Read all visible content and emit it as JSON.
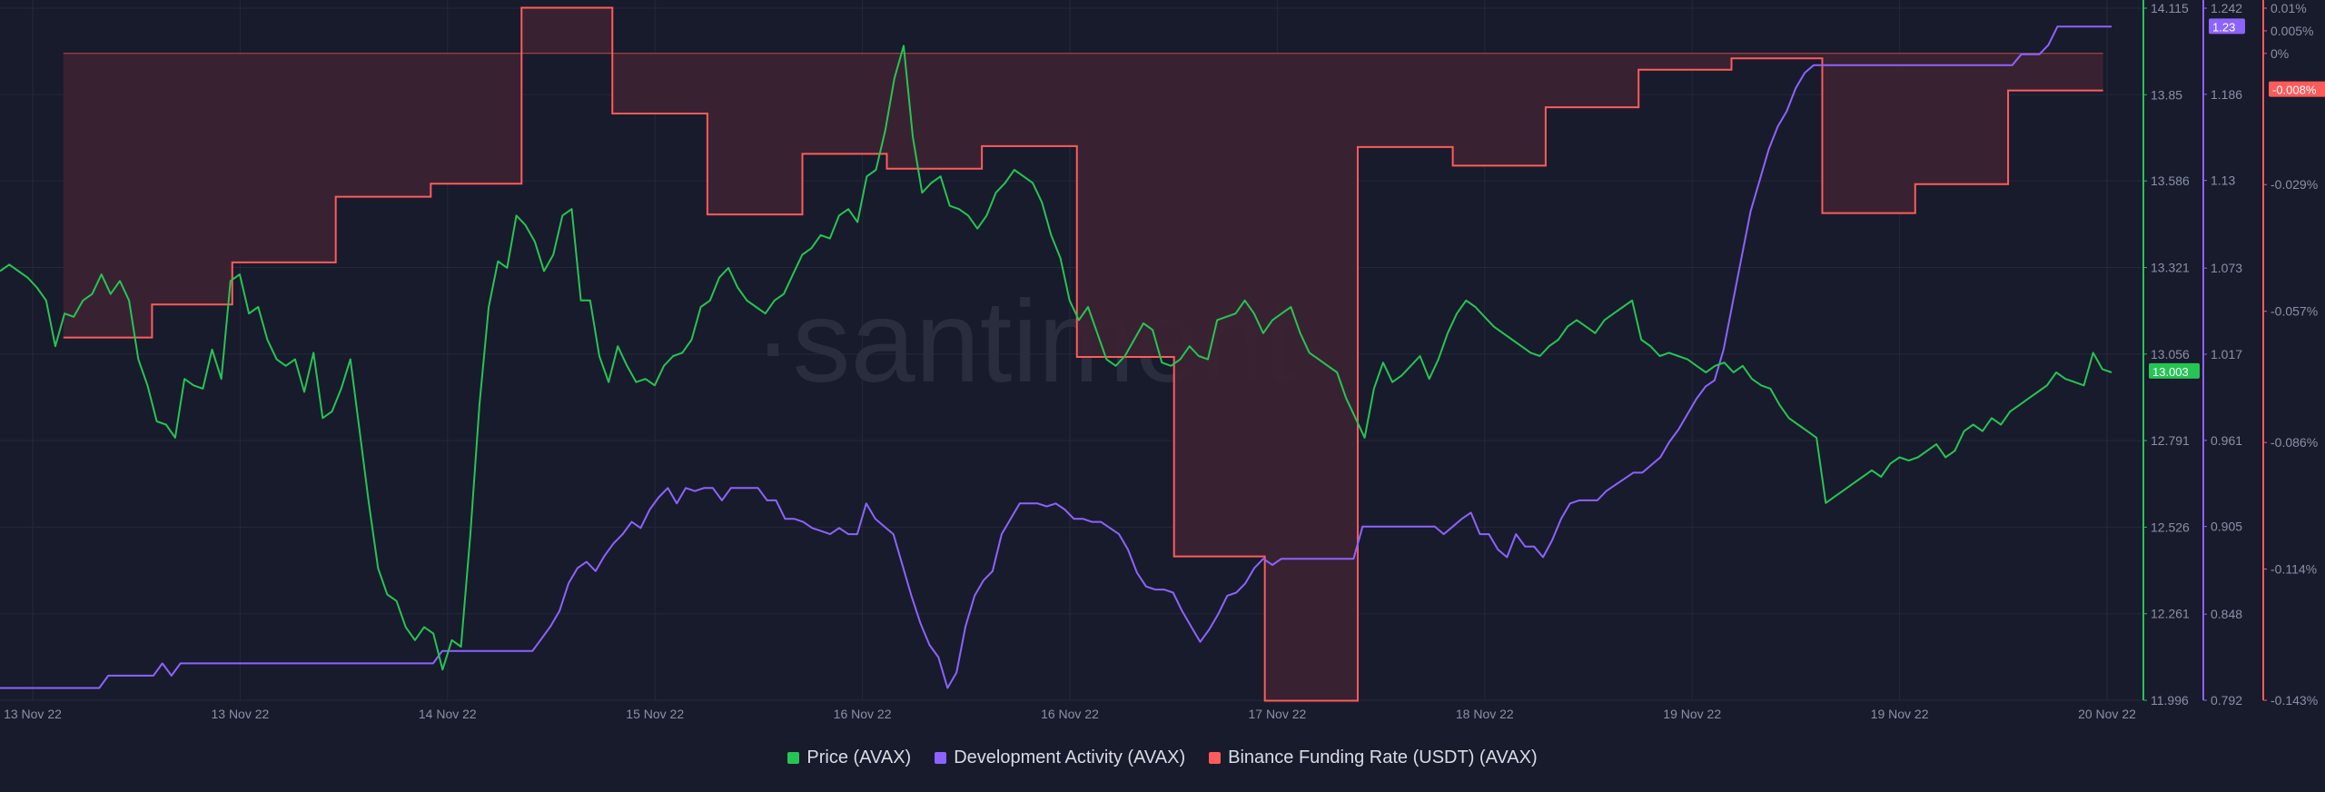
{
  "watermark": "·santiment·",
  "colors": {
    "background": "#181b2b",
    "price": "#26c454",
    "dev_activity": "#8c63ff",
    "funding_rate": "#ff5b5b",
    "funding_fill": "#3a2331",
    "grid": "#242838",
    "axis_text": "#8b90a5"
  },
  "legend": {
    "price": "Price (AVAX)",
    "dev_activity": "Development Activity (AVAX)",
    "funding_rate": "Binance Funding Rate (USDT) (AVAX)"
  },
  "chart_data": {
    "type": "line",
    "x_axis": {
      "start": "13 Nov 22",
      "end": "20 Nov 22",
      "tick_labels": [
        "13 Nov 22",
        "13 Nov 22",
        "14 Nov 22",
        "15 Nov 22",
        "16 Nov 22",
        "16 Nov 22",
        "17 Nov 22",
        "18 Nov 22",
        "19 Nov 22",
        "19 Nov 22",
        "20 Nov 22"
      ]
    },
    "axes": {
      "price": {
        "ticks": [
          "14.115",
          "13.85",
          "13.586",
          "13.321",
          "13.056",
          "12.791",
          "12.526",
          "12.261",
          "11.996"
        ],
        "range": [
          11.996,
          14.115
        ],
        "current_value": "13.003"
      },
      "dev_activity": {
        "ticks": [
          "1.242",
          "1.186",
          "1.13",
          "1.073",
          "1.017",
          "0.961",
          "0.905",
          "0.848",
          "0.792"
        ],
        "range": [
          0.792,
          1.242
        ],
        "current_value": "1.23"
      },
      "funding_rate": {
        "ticks": [
          "0.01%",
          "0.005%",
          "0%",
          "-0.029%",
          "-0.057%",
          "-0.086%",
          "-0.114%",
          "-0.143%"
        ],
        "range": [
          -0.143,
          0.01
        ],
        "current_value": "-0.008%"
      }
    },
    "series": [
      {
        "name": "Price (AVAX)",
        "axis": "price",
        "values": [
          13.31,
          13.33,
          13.31,
          13.29,
          13.26,
          13.22,
          13.08,
          13.18,
          13.17,
          13.22,
          13.24,
          13.3,
          13.24,
          13.28,
          13.22,
          13.04,
          12.96,
          12.85,
          12.84,
          12.8,
          12.98,
          12.96,
          12.95,
          13.07,
          12.98,
          13.28,
          13.3,
          13.18,
          13.2,
          13.1,
          13.04,
          13.02,
          13.04,
          12.94,
          13.06,
          12.86,
          12.88,
          12.95,
          13.04,
          12.82,
          12.6,
          12.4,
          12.32,
          12.3,
          12.22,
          12.18,
          12.22,
          12.2,
          12.09,
          12.18,
          12.16,
          12.5,
          12.9,
          13.2,
          13.34,
          13.32,
          13.48,
          13.45,
          13.4,
          13.31,
          13.36,
          13.48,
          13.5,
          13.22,
          13.22,
          13.05,
          12.97,
          13.08,
          13.02,
          12.97,
          12.98,
          12.96,
          13.02,
          13.05,
          13.06,
          13.1,
          13.2,
          13.22,
          13.29,
          13.32,
          13.26,
          13.22,
          13.2,
          13.18,
          13.22,
          13.24,
          13.3,
          13.36,
          13.38,
          13.42,
          13.41,
          13.48,
          13.5,
          13.46,
          13.6,
          13.62,
          13.74,
          13.9,
          14.0,
          13.72,
          13.55,
          13.58,
          13.6,
          13.51,
          13.5,
          13.48,
          13.44,
          13.48,
          13.55,
          13.58,
          13.62,
          13.6,
          13.58,
          13.52,
          13.42,
          13.35,
          13.22,
          13.16,
          13.2,
          13.12,
          13.04,
          13.02,
          13.05,
          13.1,
          13.15,
          13.13,
          13.03,
          13.02,
          13.04,
          13.08,
          13.05,
          13.04,
          13.16,
          13.17,
          13.18,
          13.22,
          13.18,
          13.12,
          13.16,
          13.18,
          13.2,
          13.12,
          13.06,
          13.04,
          13.02,
          13.0,
          12.92,
          12.86,
          12.8,
          12.95,
          13.03,
          12.97,
          12.99,
          13.02,
          13.05,
          12.98,
          13.04,
          13.12,
          13.18,
          13.22,
          13.2,
          13.17,
          13.14,
          13.12,
          13.1,
          13.08,
          13.06,
          13.05,
          13.08,
          13.1,
          13.14,
          13.16,
          13.14,
          13.12,
          13.16,
          13.18,
          13.2,
          13.22,
          13.1,
          13.08,
          13.05,
          13.06,
          13.05,
          13.04,
          13.02,
          13.0,
          13.02,
          13.03,
          13.0,
          13.02,
          12.98,
          12.96,
          12.95,
          12.9,
          12.86,
          12.84,
          12.82,
          12.8,
          12.6,
          12.62,
          12.64,
          12.66,
          12.68,
          12.7,
          12.68,
          12.72,
          12.74,
          12.73,
          12.74,
          12.76,
          12.78,
          12.74,
          12.76,
          12.82,
          12.84,
          12.82,
          12.86,
          12.84,
          12.88,
          12.9,
          12.92,
          12.94,
          12.96,
          13.0,
          12.98,
          12.97,
          12.96,
          13.06,
          13.01,
          13.0
        ]
      },
      {
        "name": "Development Activity (AVAX)",
        "axis": "dev_activity",
        "values": [
          0.8,
          0.8,
          0.8,
          0.8,
          0.8,
          0.8,
          0.8,
          0.8,
          0.8,
          0.8,
          0.8,
          0.8,
          0.808,
          0.808,
          0.808,
          0.808,
          0.808,
          0.808,
          0.816,
          0.808,
          0.816,
          0.816,
          0.816,
          0.816,
          0.816,
          0.816,
          0.816,
          0.816,
          0.816,
          0.816,
          0.816,
          0.816,
          0.816,
          0.816,
          0.816,
          0.816,
          0.816,
          0.816,
          0.816,
          0.816,
          0.816,
          0.816,
          0.816,
          0.816,
          0.816,
          0.816,
          0.816,
          0.816,
          0.816,
          0.824,
          0.824,
          0.824,
          0.824,
          0.824,
          0.824,
          0.824,
          0.824,
          0.824,
          0.824,
          0.824,
          0.832,
          0.84,
          0.85,
          0.868,
          0.878,
          0.882,
          0.876,
          0.886,
          0.894,
          0.9,
          0.908,
          0.904,
          0.916,
          0.924,
          0.93,
          0.92,
          0.93,
          0.928,
          0.93,
          0.93,
          0.922,
          0.93,
          0.93,
          0.93,
          0.93,
          0.922,
          0.922,
          0.91,
          0.91,
          0.908,
          0.904,
          0.902,
          0.9,
          0.904,
          0.9,
          0.9,
          0.92,
          0.91,
          0.905,
          0.9,
          0.88,
          0.86,
          0.842,
          0.828,
          0.82,
          0.8,
          0.81,
          0.84,
          0.86,
          0.87,
          0.876,
          0.9,
          0.91,
          0.92,
          0.92,
          0.92,
          0.918,
          0.92,
          0.916,
          0.91,
          0.91,
          0.908,
          0.908,
          0.904,
          0.9,
          0.89,
          0.875,
          0.866,
          0.864,
          0.864,
          0.862,
          0.85,
          0.84,
          0.83,
          0.838,
          0.848,
          0.86,
          0.862,
          0.868,
          0.878,
          0.884,
          0.88,
          0.884,
          0.884,
          0.884,
          0.884,
          0.884,
          0.884,
          0.884,
          0.884,
          0.884,
          0.905,
          0.905,
          0.905,
          0.905,
          0.905,
          0.905,
          0.905,
          0.905,
          0.905,
          0.9,
          0.905,
          0.91,
          0.914,
          0.9,
          0.9,
          0.89,
          0.885,
          0.9,
          0.892,
          0.892,
          0.885,
          0.896,
          0.91,
          0.92,
          0.922,
          0.922,
          0.922,
          0.928,
          0.932,
          0.936,
          0.94,
          0.94,
          0.945,
          0.95,
          0.96,
          0.968,
          0.978,
          0.988,
          0.996,
          1.0,
          1.02,
          1.05,
          1.08,
          1.11,
          1.13,
          1.15,
          1.165,
          1.175,
          1.19,
          1.2,
          1.205,
          1.205,
          1.205,
          1.205,
          1.205,
          1.205,
          1.205,
          1.205,
          1.205,
          1.205,
          1.205,
          1.205,
          1.205,
          1.205,
          1.205,
          1.205,
          1.205,
          1.205,
          1.205,
          1.205,
          1.205,
          1.205,
          1.205,
          1.212,
          1.212,
          1.212,
          1.218,
          1.23,
          1.23,
          1.23,
          1.23,
          1.23,
          1.23,
          1.23
        ]
      },
      {
        "name": "Binance Funding Rate (USDT) (AVAX)",
        "axis": "funding_rate",
        "fill_to": 0,
        "steps": [
          {
            "x": [
              0.03,
              0.072
            ],
            "value": -0.0628
          },
          {
            "x": [
              0.072,
              0.11
            ],
            "value": -0.0555
          },
          {
            "x": [
              0.11,
              0.159
            ],
            "value": -0.0462
          },
          {
            "x": [
              0.159,
              0.204
            ],
            "value": -0.0317
          },
          {
            "x": [
              0.204,
              0.247
            ],
            "value": -0.0288
          },
          {
            "x": [
              0.247,
              0.29
            ],
            "value": 0.0101
          },
          {
            "x": [
              0.29,
              0.335
            ],
            "value": -0.0133
          },
          {
            "x": [
              0.335,
              0.38
            ],
            "value": -0.0356
          },
          {
            "x": [
              0.38,
              0.42
            ],
            "value": -0.0222
          },
          {
            "x": [
              0.42,
              0.465
            ],
            "value": -0.0255
          },
          {
            "x": [
              0.465,
              0.51
            ],
            "value": -0.0205
          },
          {
            "x": [
              0.51,
              0.556
            ],
            "value": -0.0671
          },
          {
            "x": [
              0.556,
              0.599
            ],
            "value": -0.1112
          },
          {
            "x": [
              0.599,
              0.643
            ],
            "value": -0.1431
          },
          {
            "x": [
              0.643,
              0.688
            ],
            "value": -0.0207
          },
          {
            "x": [
              0.688,
              0.732
            ],
            "value": -0.0248
          },
          {
            "x": [
              0.732,
              0.776
            ],
            "value": -0.0119
          },
          {
            "x": [
              0.776,
              0.82
            ],
            "value": -0.0036
          },
          {
            "x": [
              0.82,
              0.863
            ],
            "value": -0.0011
          },
          {
            "x": [
              0.863,
              0.907
            ],
            "value": -0.0353
          },
          {
            "x": [
              0.907,
              0.951
            ],
            "value": -0.0289
          },
          {
            "x": [
              0.951,
              0.996
            ],
            "value": -0.0082
          }
        ]
      }
    ]
  }
}
